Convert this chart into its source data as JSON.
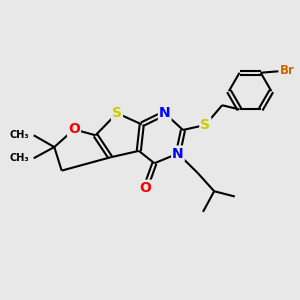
{
  "background_color": "#e8e8e8",
  "atom_colors": {
    "S": "#cccc00",
    "N": "#0000ff",
    "O": "#ff0000",
    "Br": "#cc6600",
    "C": "#000000"
  },
  "bond_color": "#000000",
  "bond_width": 1.5,
  "figsize": [
    3.0,
    3.0
  ],
  "dpi": 100
}
